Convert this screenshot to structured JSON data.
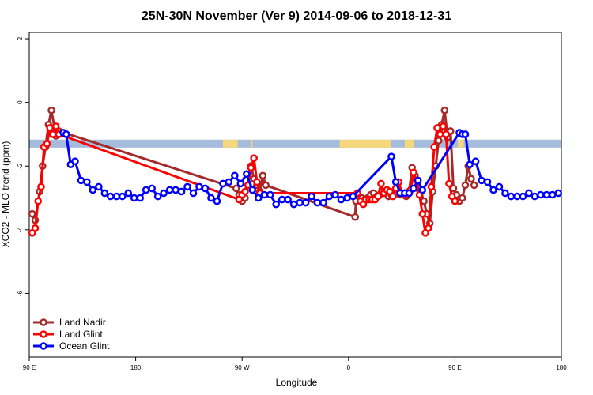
{
  "chart_data": {
    "type": "line",
    "title": "25N-30N November (Ver 9)   2014-09-06 to 2018-12-31",
    "xlabel": "Longitude",
    "ylabel": "XCO2 - MLO trend (ppm)",
    "xlim": [
      -90,
      270
    ],
    "ylim": [
      -8,
      2.2
    ],
    "x_ticks": [
      {
        "value": -90,
        "label": "90 E"
      },
      {
        "value": -18,
        "label": "180"
      },
      {
        "value": 54,
        "label": "90 W"
      },
      {
        "value": 126,
        "label": "0"
      },
      {
        "value": 198,
        "label": "90 E"
      },
      {
        "value": 270,
        "label": "180"
      }
    ],
    "y_ticks": [
      {
        "value": 2,
        "label": "2"
      },
      {
        "value": 0,
        "label": "0"
      },
      {
        "value": -2,
        "label": "-2"
      },
      {
        "value": -4,
        "label": "-4"
      },
      {
        "value": -6,
        "label": "-6"
      }
    ],
    "grid": false,
    "legend_position": "bottom-left",
    "land_mask_band": {
      "y_top": -1.17,
      "y_bottom": -1.42,
      "ocean_color": "#a5bcdc",
      "land_color": "#f6d77b"
    },
    "series": [
      {
        "name": "Land Nadir",
        "color": "#a52a2a",
        "x": [
          -88,
          -86,
          -83,
          -81,
          -79,
          -77,
          -75,
          -72,
          -70,
          50,
          52,
          54,
          56,
          58,
          60,
          62,
          64,
          66,
          68,
          70,
          130.5,
          131,
          133,
          135,
          137,
          139,
          141,
          143,
          145,
          147,
          149,
          151,
          153,
          155,
          157,
          159,
          161,
          163,
          165,
          167,
          169,
          171,
          173,
          175,
          177,
          179,
          181,
          183,
          185,
          187,
          189,
          191,
          193,
          195,
          197,
          199,
          201,
          203,
          205,
          207,
          209,
          211
        ],
        "y": [
          -3.5,
          -3.7,
          -2.8,
          -2.0,
          -1.4,
          -0.7,
          -0.25,
          -1.05,
          -0.9,
          -2.7,
          -2.9,
          -3.1,
          -3.0,
          -2.6,
          -2.0,
          -2.4,
          -2.6,
          -2.8,
          -2.3,
          -2.6,
          -3.6,
          -3.1,
          -2.95,
          -3.0,
          -3.05,
          -3.0,
          -2.9,
          -2.85,
          -2.95,
          -2.9,
          -2.8,
          -2.8,
          -2.95,
          -2.9,
          -2.9,
          -2.6,
          -2.9,
          -2.9,
          -2.95,
          -2.8,
          -2.05,
          -2.3,
          -2.7,
          -2.8,
          -3.1,
          -3.5,
          -3.8,
          -2.8,
          -2.0,
          -1.2,
          -0.7,
          -0.25,
          -1.1,
          -0.9,
          -2.7,
          -2.9,
          -3.1,
          -3.0,
          -2.6,
          -2.0,
          -2.4,
          -2.6
        ]
      },
      {
        "name": "Land Glint",
        "color": "#ff0000",
        "x": [
          -88,
          -86,
          -84,
          -82,
          -80,
          -78,
          -76,
          -74,
          -72,
          -70,
          52,
          54,
          56,
          58,
          60,
          62,
          64,
          66,
          132,
          134,
          136,
          138,
          140,
          142,
          144,
          146,
          148,
          150,
          152,
          154,
          156,
          158,
          160,
          162,
          164,
          166,
          168,
          170,
          172,
          174,
          176,
          178,
          180,
          182,
          184,
          186,
          188,
          190,
          192,
          194,
          196,
          198
        ],
        "y": [
          -4.1,
          -3.95,
          -3.1,
          -2.65,
          -1.4,
          -1.3,
          -0.8,
          -1.0,
          -0.75,
          -1.0,
          -3.05,
          -2.9,
          -2.8,
          -2.6,
          -2.05,
          -1.75,
          -2.5,
          -2.85,
          -2.85,
          -3.1,
          -3.2,
          -3.05,
          -3.05,
          -3.05,
          -3.05,
          -2.95,
          -2.55,
          -2.85,
          -2.75,
          -2.8,
          -2.95,
          -2.7,
          -2.5,
          -2.85,
          -2.85,
          -2.9,
          -2.75,
          -2.2,
          -2.45,
          -2.9,
          -3.5,
          -4.1,
          -3.95,
          -2.65,
          -1.4,
          -0.8,
          -1.0,
          -0.75,
          -1.0,
          -2.55,
          -2.95,
          -3.1
        ]
      },
      {
        "name": "Ocean Glint",
        "color": "#0000ff",
        "x": [
          -67,
          -65,
          -62,
          -59,
          -55,
          -51,
          -47,
          -43,
          -39,
          -35,
          -31,
          -27,
          -23,
          -19,
          -15,
          -11,
          -7,
          -3,
          1,
          5,
          9,
          13,
          17,
          21,
          25,
          29,
          33,
          37,
          41,
          45,
          49,
          53,
          57,
          61,
          65,
          69,
          73,
          77,
          81,
          85,
          89,
          93,
          97,
          101,
          105,
          109,
          113,
          117,
          121,
          125,
          129,
          155,
          158,
          161,
          164,
          167,
          170,
          173,
          176,
          201,
          203,
          205,
          208,
          212,
          216,
          220,
          224,
          228,
          232,
          236,
          240,
          244,
          248,
          252,
          256,
          260,
          264,
          268
        ],
        "y": [
          -0.95,
          -1.0,
          -1.95,
          -1.85,
          -2.45,
          -2.5,
          -2.75,
          -2.65,
          -2.85,
          -2.95,
          -2.95,
          -2.95,
          -2.85,
          -3.0,
          -3.0,
          -2.75,
          -2.7,
          -2.95,
          -2.85,
          -2.75,
          -2.75,
          -2.8,
          -2.65,
          -2.85,
          -2.65,
          -2.7,
          -3.0,
          -3.1,
          -2.55,
          -2.5,
          -2.3,
          -2.55,
          -2.25,
          -2.75,
          -3.0,
          -2.9,
          -2.9,
          -3.2,
          -3.05,
          -3.05,
          -3.2,
          -3.15,
          -3.15,
          -2.95,
          -3.15,
          -3.15,
          -2.95,
          -2.9,
          -3.05,
          -3.0,
          -2.95,
          -1.7,
          -2.5,
          -2.85,
          -2.85,
          -2.85,
          -2.7,
          -2.45,
          -2.75,
          -0.95,
          -1.0,
          -1.0,
          -1.95,
          -1.85,
          -2.45,
          -2.5,
          -2.75,
          -2.65,
          -2.85,
          -2.95,
          -2.95,
          -2.95,
          -2.85,
          -2.95,
          -2.9,
          -2.9,
          -2.9,
          -2.85
        ]
      }
    ]
  }
}
